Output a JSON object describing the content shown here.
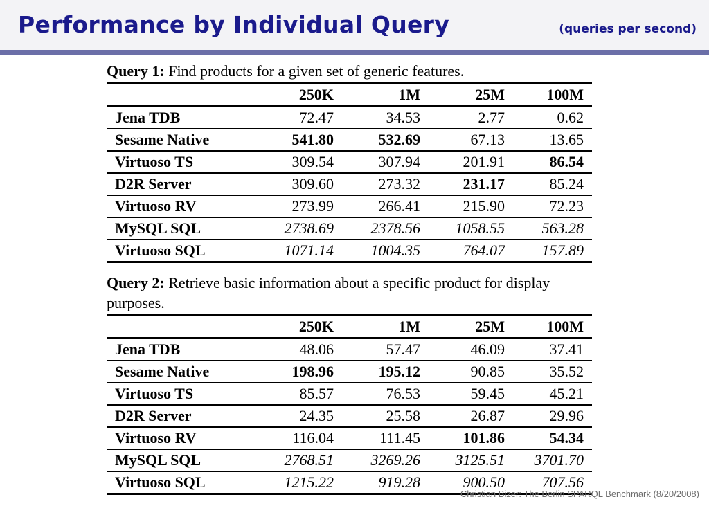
{
  "header": {
    "title": "Performance by Individual Query",
    "subtitle": "(queries per second)"
  },
  "columns": [
    "",
    "250K",
    "1M",
    "25M",
    "100M"
  ],
  "queries": [
    {
      "label": "Query 1:",
      "description": "Find products for a given set of generic features.",
      "rows": [
        {
          "system": "Jena TDB",
          "values": [
            "72.47",
            "34.53",
            "2.77",
            "0.62"
          ],
          "bold": [
            false,
            false,
            false,
            false
          ],
          "italic": false
        },
        {
          "system": "Sesame Native",
          "values": [
            "541.80",
            "532.69",
            "67.13",
            "13.65"
          ],
          "bold": [
            true,
            true,
            false,
            false
          ],
          "italic": false
        },
        {
          "system": "Virtuoso TS",
          "values": [
            "309.54",
            "307.94",
            "201.91",
            "86.54"
          ],
          "bold": [
            false,
            false,
            false,
            true
          ],
          "italic": false
        },
        {
          "system": "D2R Server",
          "values": [
            "309.60",
            "273.32",
            "231.17",
            "85.24"
          ],
          "bold": [
            false,
            false,
            true,
            false
          ],
          "italic": false
        },
        {
          "system": "Virtuoso RV",
          "values": [
            "273.99",
            "266.41",
            "215.90",
            "72.23"
          ],
          "bold": [
            false,
            false,
            false,
            false
          ],
          "italic": false
        },
        {
          "system": "MySQL SQL",
          "values": [
            "2738.69",
            "2378.56",
            "1058.55",
            "563.28"
          ],
          "bold": [
            false,
            false,
            false,
            false
          ],
          "italic": true
        },
        {
          "system": "Virtuoso SQL",
          "values": [
            "1071.14",
            "1004.35",
            "764.07",
            "157.89"
          ],
          "bold": [
            false,
            false,
            false,
            false
          ],
          "italic": true
        }
      ]
    },
    {
      "label": "Query 2:",
      "description": "Retrieve basic information about a specific product for display purposes.",
      "rows": [
        {
          "system": "Jena TDB",
          "values": [
            "48.06",
            "57.47",
            "46.09",
            "37.41"
          ],
          "bold": [
            false,
            false,
            false,
            false
          ],
          "italic": false
        },
        {
          "system": "Sesame Native",
          "values": [
            "198.96",
            "195.12",
            "90.85",
            "35.52"
          ],
          "bold": [
            true,
            true,
            false,
            false
          ],
          "italic": false
        },
        {
          "system": "Virtuoso TS",
          "values": [
            "85.57",
            "76.53",
            "59.45",
            "45.21"
          ],
          "bold": [
            false,
            false,
            false,
            false
          ],
          "italic": false
        },
        {
          "system": "D2R Server",
          "values": [
            "24.35",
            "25.58",
            "26.87",
            "29.96"
          ],
          "bold": [
            false,
            false,
            false,
            false
          ],
          "italic": false
        },
        {
          "system": "Virtuoso RV",
          "values": [
            "116.04",
            "111.45",
            "101.86",
            "54.34"
          ],
          "bold": [
            false,
            false,
            true,
            true
          ],
          "italic": false
        },
        {
          "system": "MySQL SQL",
          "values": [
            "2768.51",
            "3269.26",
            "3125.51",
            "3701.70"
          ],
          "bold": [
            false,
            false,
            false,
            false
          ],
          "italic": true
        },
        {
          "system": "Virtuoso SQL",
          "values": [
            "1215.22",
            "919.28",
            "900.50",
            "707.56"
          ],
          "bold": [
            false,
            false,
            false,
            false
          ],
          "italic": true
        }
      ]
    }
  ],
  "footer": "Christian Bizer: The Berlin SPARQL Benchmark (8/20/2008)"
}
